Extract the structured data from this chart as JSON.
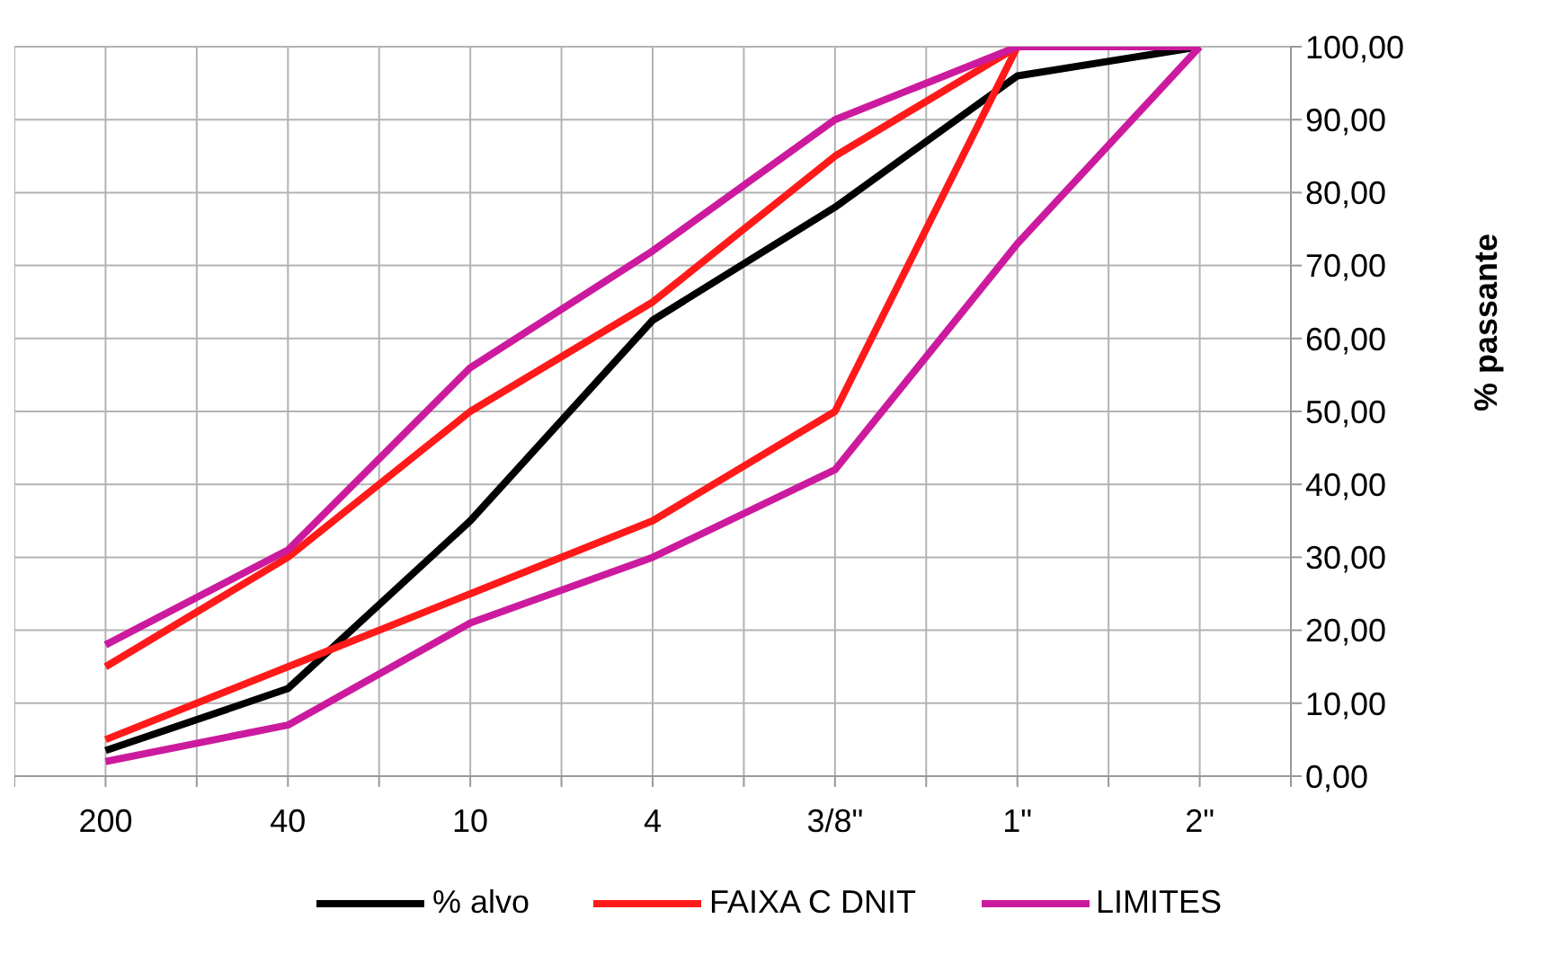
{
  "chart_data": {
    "type": "line",
    "ylabel": "% passante",
    "categories": [
      "200",
      "40",
      "10",
      "4",
      "3/8\"",
      "1\"",
      "2\""
    ],
    "series": [
      {
        "name": "% alvo",
        "color": "#000000",
        "values": [
          3.5,
          12,
          35,
          62.5,
          78,
          96,
          100
        ]
      },
      {
        "name": "FAIXA C DNIT",
        "color": "#ff1a1a",
        "values": [
          15,
          30,
          50,
          65,
          85,
          100,
          100
        ]
      },
      {
        "color": "#ff1a1a",
        "values": [
          5,
          15,
          25,
          35,
          50,
          100,
          100
        ]
      },
      {
        "name": "LIMITES",
        "color": "#cc1a9e",
        "values": [
          18,
          31,
          56,
          72,
          90,
          100,
          100
        ]
      },
      {
        "color": "#cc1a9e",
        "values": [
          2,
          7,
          21,
          30,
          42,
          73,
          100
        ]
      }
    ],
    "ylim": [
      0,
      100
    ],
    "yticks": [
      {
        "value": 0,
        "label": "0,00"
      },
      {
        "value": 10,
        "label": "10,00"
      },
      {
        "value": 20,
        "label": "20,00"
      },
      {
        "value": 30,
        "label": "30,00"
      },
      {
        "value": 40,
        "label": "40,00"
      },
      {
        "value": 50,
        "label": "50,00"
      },
      {
        "value": 60,
        "label": "60,00"
      },
      {
        "value": 70,
        "label": "70,00"
      },
      {
        "value": 80,
        "label": "80,00"
      },
      {
        "value": 90,
        "label": "90,00"
      },
      {
        "value": 100,
        "label": "100,00"
      }
    ],
    "grid": true,
    "legend": "bottom",
    "marker": "none",
    "line_style": "solid"
  }
}
